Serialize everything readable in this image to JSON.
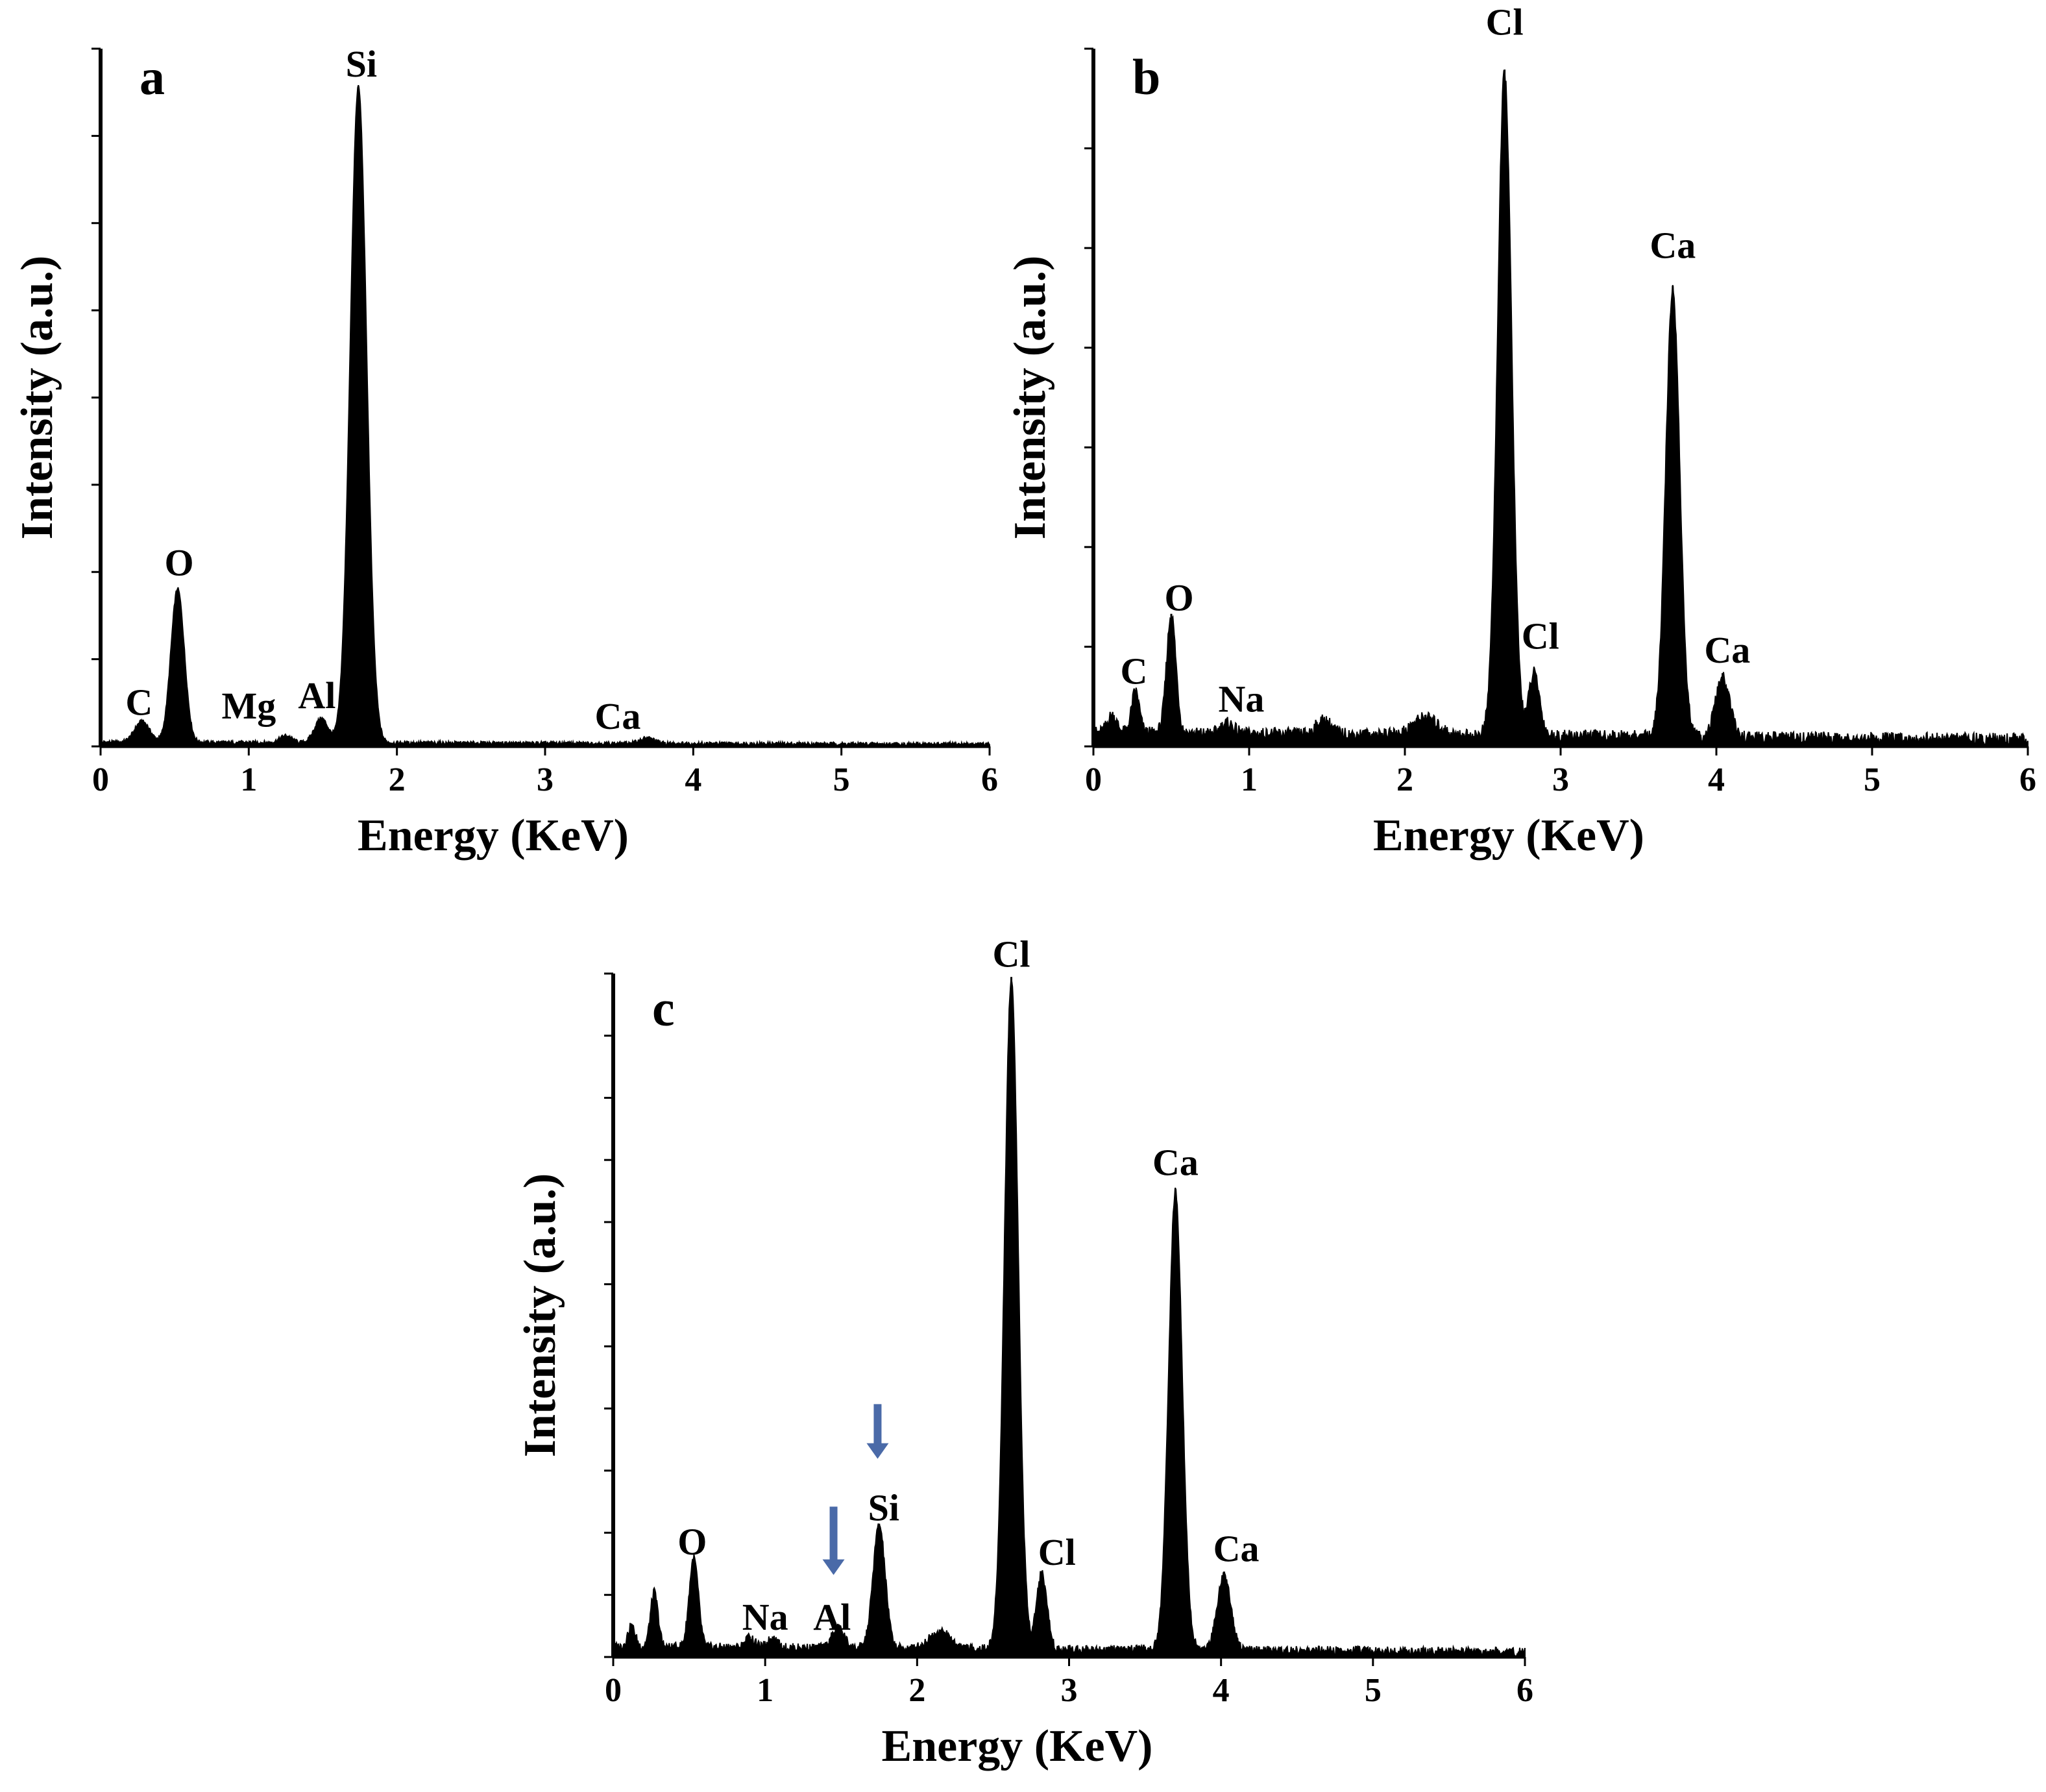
{
  "figure": {
    "description_free": true
  },
  "chart_data": [
    {
      "id": "a",
      "type": "line",
      "panel_label": "a",
      "xlabel": "Energy (KeV)",
      "ylabel": "Intensity (a.u.)",
      "xlim": [
        0,
        6
      ],
      "ylim": [
        0,
        100
      ],
      "xticks": [
        "0",
        "1",
        "2",
        "3",
        "4",
        "5",
        "6"
      ],
      "y_minor_ticks": 8,
      "baseline": 0.6,
      "peaks": [
        {
          "x": 0.28,
          "height": 3,
          "width": 0.05
        },
        {
          "x": 0.52,
          "height": 22,
          "width": 0.045
        },
        {
          "x": 1.25,
          "height": 1,
          "width": 0.04
        },
        {
          "x": 1.49,
          "height": 3.5,
          "width": 0.045
        },
        {
          "x": 1.74,
          "height": 94,
          "width": 0.055
        },
        {
          "x": 3.69,
          "height": 0.8,
          "width": 0.05
        }
      ],
      "annotations": [
        {
          "text": "C",
          "x": 0.26,
          "y": 4.5
        },
        {
          "text": "O",
          "x": 0.53,
          "y": 24.5
        },
        {
          "text": "Mg",
          "x": 1.0,
          "y": 4.0
        },
        {
          "text": "Al",
          "x": 1.46,
          "y": 5.5
        },
        {
          "text": "Si",
          "x": 1.76,
          "y": 96
        },
        {
          "text": "Ca",
          "x": 3.49,
          "y": 2.5
        }
      ]
    },
    {
      "id": "b",
      "type": "line",
      "panel_label": "b",
      "xlabel": "Energy (KeV)",
      "ylabel": "Intensity (a.u.)",
      "xlim": [
        0,
        6
      ],
      "ylim": [
        0,
        100
      ],
      "xticks": [
        "0",
        "1",
        "2",
        "3",
        "4",
        "5",
        "6"
      ],
      "y_minor_ticks": 7,
      "baseline": 2,
      "peaks": [
        {
          "x": 0.12,
          "height": 2.5,
          "width": 0.03
        },
        {
          "x": 0.27,
          "height": 6,
          "width": 0.025
        },
        {
          "x": 0.5,
          "height": 17,
          "width": 0.03
        },
        {
          "x": 0.86,
          "height": 1.5,
          "width": 0.04
        },
        {
          "x": 1.48,
          "height": 2,
          "width": 0.05
        },
        {
          "x": 2.13,
          "height": 2.5,
          "width": 0.08
        },
        {
          "x": 2.64,
          "height": 95,
          "width": 0.045
        },
        {
          "x": 2.83,
          "height": 9,
          "width": 0.035
        },
        {
          "x": 3.72,
          "height": 64,
          "width": 0.045
        },
        {
          "x": 4.04,
          "height": 8.5,
          "width": 0.045
        }
      ],
      "annotations": [
        {
          "text": "C",
          "x": 0.26,
          "y": 9
        },
        {
          "text": "O",
          "x": 0.55,
          "y": 19.5
        },
        {
          "text": "Na",
          "x": 0.95,
          "y": 5
        },
        {
          "text": "Cl",
          "x": 2.64,
          "y": 102
        },
        {
          "text": "Cl",
          "x": 2.87,
          "y": 14
        },
        {
          "text": "Ca",
          "x": 3.72,
          "y": 70
        },
        {
          "text": "Ca",
          "x": 4.07,
          "y": 12
        }
      ]
    },
    {
      "id": "c",
      "type": "line",
      "panel_label": "c",
      "xlabel": "Energy (KeV)",
      "ylabel": "Intensity (a.u.)",
      "xlim": [
        0,
        6
      ],
      "ylim": [
        0,
        100
      ],
      "xticks": [
        "0",
        "1",
        "2",
        "3",
        "4",
        "5",
        "6"
      ],
      "y_minor_ticks": 11,
      "baseline": 1.5,
      "peaks": [
        {
          "x": 0.12,
          "height": 3,
          "width": 0.025
        },
        {
          "x": 0.27,
          "height": 8,
          "width": 0.025
        },
        {
          "x": 0.53,
          "height": 13,
          "width": 0.03
        },
        {
          "x": 0.9,
          "height": 1.5,
          "width": 0.03
        },
        {
          "x": 1.05,
          "height": 1.5,
          "width": 0.03
        },
        {
          "x": 1.48,
          "height": 3,
          "width": 0.04
        },
        {
          "x": 1.75,
          "height": 18,
          "width": 0.04
        },
        {
          "x": 2.15,
          "height": 2.5,
          "width": 0.07
        },
        {
          "x": 2.62,
          "height": 98,
          "width": 0.045
        },
        {
          "x": 2.82,
          "height": 11,
          "width": 0.035
        },
        {
          "x": 3.7,
          "height": 67,
          "width": 0.045
        },
        {
          "x": 4.02,
          "height": 11,
          "width": 0.045
        }
      ],
      "annotations": [
        {
          "text": "O",
          "x": 0.52,
          "y": 15
        },
        {
          "text": "Na",
          "x": 1.0,
          "y": 4
        },
        {
          "text": "Al",
          "x": 1.44,
          "y": 4
        },
        {
          "text": "Si",
          "x": 1.78,
          "y": 20
        },
        {
          "text": "Cl",
          "x": 2.62,
          "y": 101
        },
        {
          "text": "Cl",
          "x": 2.92,
          "y": 13.5
        },
        {
          "text": "Ca",
          "x": 3.7,
          "y": 70.5
        },
        {
          "text": "Ca",
          "x": 4.1,
          "y": 14
        }
      ],
      "arrows": [
        {
          "x": 1.74,
          "y_top": 37,
          "y_bottom": 29,
          "color": "#4a6aa8"
        },
        {
          "x": 1.45,
          "y_top": 22,
          "y_bottom": 12,
          "color": "#4a6aa8"
        }
      ]
    }
  ]
}
